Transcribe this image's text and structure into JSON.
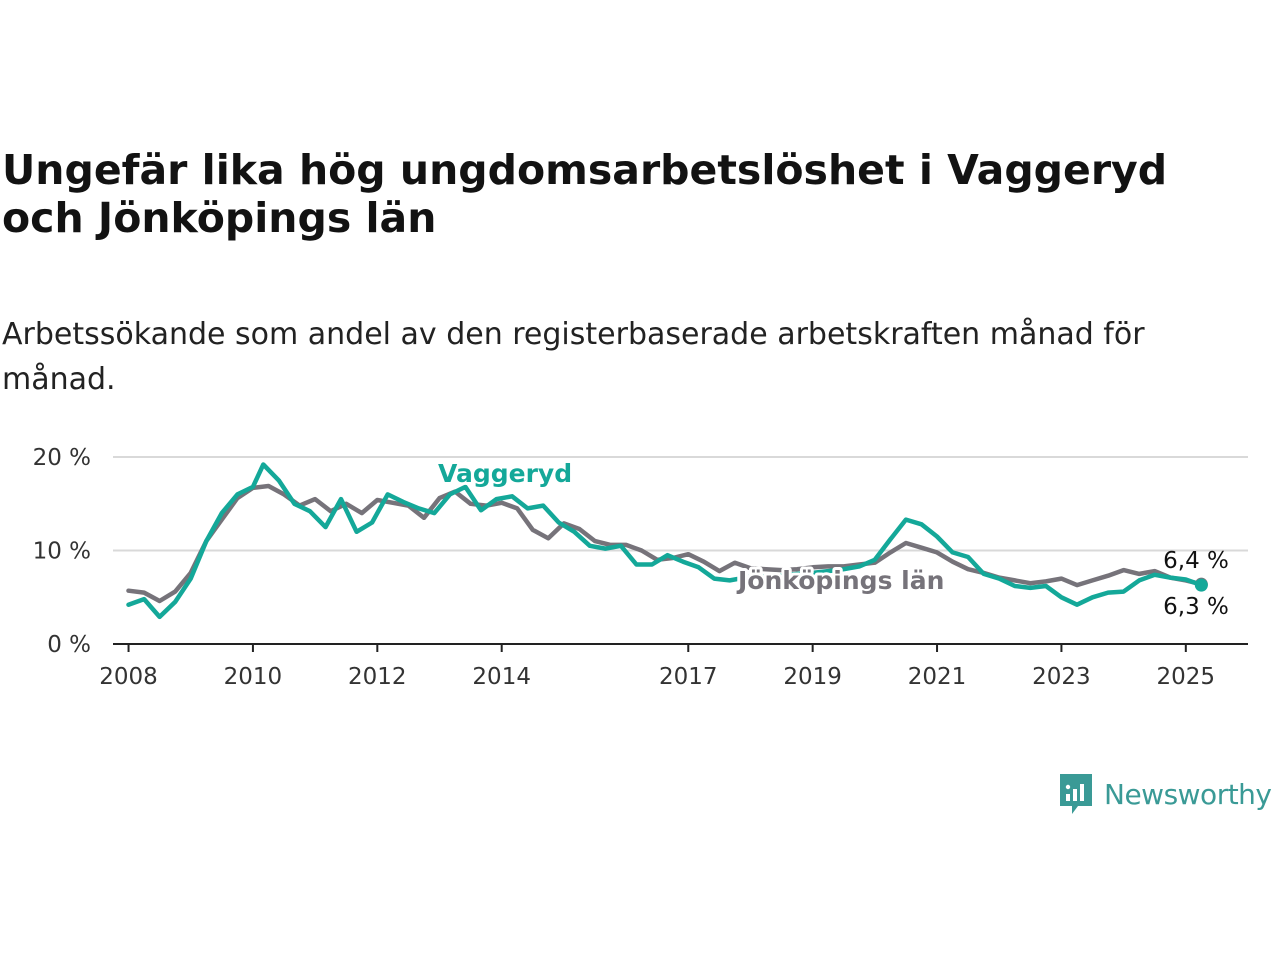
{
  "title": "Ungefär lika hög ungdomsarbetslöshet i Vaggeryd och Jönköpings län",
  "subtitle": "Arbetssökande som andel av den registerbaserade arbetskraften månad för månad.",
  "brand": {
    "name": "Newsworthy",
    "icon": "newsworthy-chart-icon",
    "color": "#3a9a96"
  },
  "chart_data": {
    "type": "line",
    "xlabel": "",
    "ylabel": "",
    "ylim": [
      0,
      20
    ],
    "xlim": [
      "2008-01",
      "2025-12"
    ],
    "grid": true,
    "x_ticks": [
      "2008",
      "2010",
      "2012",
      "2014",
      "2017",
      "2019",
      "2021",
      "2023",
      "2025"
    ],
    "y_ticks": [
      "0 %",
      "10 %",
      "20 %"
    ],
    "series": [
      {
        "name": "Jönköpings län",
        "color": "#76737a",
        "end_label": "6,4 %",
        "points": [
          [
            "2008-01",
            5.7
          ],
          [
            "2008-04",
            5.5
          ],
          [
            "2008-07",
            4.6
          ],
          [
            "2008-10",
            5.6
          ],
          [
            "2009-01",
            7.6
          ],
          [
            "2009-04",
            11.0
          ],
          [
            "2009-07",
            13.3
          ],
          [
            "2009-10",
            15.6
          ],
          [
            "2010-01",
            16.7
          ],
          [
            "2010-04",
            16.9
          ],
          [
            "2010-07",
            16.0
          ],
          [
            "2010-10",
            14.8
          ],
          [
            "2011-01",
            15.5
          ],
          [
            "2011-04",
            14.2
          ],
          [
            "2011-07",
            15.0
          ],
          [
            "2011-10",
            14.0
          ],
          [
            "2012-01",
            15.4
          ],
          [
            "2012-04",
            15.1
          ],
          [
            "2012-07",
            14.8
          ],
          [
            "2012-10",
            13.5
          ],
          [
            "2013-01",
            15.6
          ],
          [
            "2013-04",
            16.3
          ],
          [
            "2013-07",
            15.0
          ],
          [
            "2013-10",
            14.8
          ],
          [
            "2014-01",
            15.1
          ],
          [
            "2014-04",
            14.5
          ],
          [
            "2014-07",
            12.2
          ],
          [
            "2014-10",
            11.3
          ],
          [
            "2015-01",
            12.9
          ],
          [
            "2015-04",
            12.3
          ],
          [
            "2015-07",
            11.0
          ],
          [
            "2015-10",
            10.6
          ],
          [
            "2016-01",
            10.6
          ],
          [
            "2016-04",
            10.0
          ],
          [
            "2016-07",
            9.0
          ],
          [
            "2016-10",
            9.2
          ],
          [
            "2017-01",
            9.6
          ],
          [
            "2017-04",
            8.8
          ],
          [
            "2017-07",
            7.8
          ],
          [
            "2017-10",
            8.7
          ],
          [
            "2018-01",
            8.1
          ],
          [
            "2018-04",
            8.0
          ],
          [
            "2018-07",
            7.9
          ],
          [
            "2018-10",
            8.0
          ],
          [
            "2019-01",
            8.2
          ],
          [
            "2019-04",
            8.3
          ],
          [
            "2019-07",
            8.3
          ],
          [
            "2019-10",
            8.5
          ],
          [
            "2020-01",
            8.7
          ],
          [
            "2020-04",
            9.8
          ],
          [
            "2020-07",
            10.8
          ],
          [
            "2020-10",
            10.3
          ],
          [
            "2021-01",
            9.8
          ],
          [
            "2021-04",
            8.8
          ],
          [
            "2021-07",
            8.0
          ],
          [
            "2021-10",
            7.6
          ],
          [
            "2022-01",
            7.1
          ],
          [
            "2022-04",
            6.8
          ],
          [
            "2022-07",
            6.5
          ],
          [
            "2022-10",
            6.7
          ],
          [
            "2023-01",
            7.0
          ],
          [
            "2023-04",
            6.3
          ],
          [
            "2023-07",
            6.8
          ],
          [
            "2023-10",
            7.3
          ],
          [
            "2024-01",
            7.9
          ],
          [
            "2024-04",
            7.5
          ],
          [
            "2024-07",
            7.8
          ],
          [
            "2024-10",
            7.1
          ],
          [
            "2025-01",
            6.8
          ],
          [
            "2025-04",
            6.4
          ]
        ]
      },
      {
        "name": "Vaggeryd",
        "color": "#14a899",
        "end_label": "6,3 %",
        "points": [
          [
            "2008-01",
            4.2
          ],
          [
            "2008-04",
            4.8
          ],
          [
            "2008-07",
            2.9
          ],
          [
            "2008-10",
            4.5
          ],
          [
            "2009-01",
            7.0
          ],
          [
            "2009-04",
            11.0
          ],
          [
            "2009-07",
            14.0
          ],
          [
            "2009-10",
            16.0
          ],
          [
            "2010-01",
            16.8
          ],
          [
            "2010-03",
            19.2
          ],
          [
            "2010-06",
            17.5
          ],
          [
            "2010-09",
            15.0
          ],
          [
            "2010-12",
            14.2
          ],
          [
            "2011-03",
            12.5
          ],
          [
            "2011-06",
            15.5
          ],
          [
            "2011-09",
            12.0
          ],
          [
            "2011-12",
            13.0
          ],
          [
            "2012-03",
            16.0
          ],
          [
            "2012-06",
            15.2
          ],
          [
            "2012-09",
            14.5
          ],
          [
            "2012-12",
            14.0
          ],
          [
            "2013-03",
            16.0
          ],
          [
            "2013-06",
            16.8
          ],
          [
            "2013-09",
            14.3
          ],
          [
            "2013-12",
            15.5
          ],
          [
            "2014-03",
            15.8
          ],
          [
            "2014-06",
            14.5
          ],
          [
            "2014-09",
            14.8
          ],
          [
            "2014-12",
            13.0
          ],
          [
            "2015-03",
            12.0
          ],
          [
            "2015-06",
            10.5
          ],
          [
            "2015-09",
            10.2
          ],
          [
            "2015-12",
            10.5
          ],
          [
            "2016-03",
            8.5
          ],
          [
            "2016-06",
            8.5
          ],
          [
            "2016-09",
            9.5
          ],
          [
            "2016-12",
            8.8
          ],
          [
            "2017-03",
            8.2
          ],
          [
            "2017-06",
            7.0
          ],
          [
            "2017-09",
            6.8
          ],
          [
            "2018-01",
            7.2
          ],
          [
            "2018-04",
            7.2
          ],
          [
            "2018-07",
            7.3
          ],
          [
            "2018-10",
            7.5
          ],
          [
            "2019-01",
            7.6
          ],
          [
            "2019-04",
            7.8
          ],
          [
            "2019-07",
            8.0
          ],
          [
            "2019-10",
            8.3
          ],
          [
            "2020-01",
            9.0
          ],
          [
            "2020-04",
            11.2
          ],
          [
            "2020-07",
            13.3
          ],
          [
            "2020-10",
            12.8
          ],
          [
            "2021-01",
            11.5
          ],
          [
            "2021-04",
            9.8
          ],
          [
            "2021-07",
            9.3
          ],
          [
            "2021-10",
            7.5
          ],
          [
            "2022-01",
            7.0
          ],
          [
            "2022-04",
            6.2
          ],
          [
            "2022-07",
            6.0
          ],
          [
            "2022-10",
            6.2
          ],
          [
            "2023-01",
            5.0
          ],
          [
            "2023-04",
            4.2
          ],
          [
            "2023-07",
            5.0
          ],
          [
            "2023-10",
            5.5
          ],
          [
            "2024-01",
            5.6
          ],
          [
            "2024-04",
            6.8
          ],
          [
            "2024-07",
            7.4
          ],
          [
            "2024-10",
            7.1
          ],
          [
            "2025-01",
            6.9
          ],
          [
            "2025-04",
            6.3
          ]
        ]
      }
    ]
  }
}
